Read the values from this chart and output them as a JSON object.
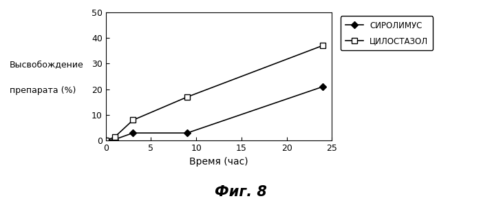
{
  "sirolimus_x": [
    0,
    1,
    3,
    9,
    24
  ],
  "sirolimus_y": [
    0,
    0.5,
    3,
    3,
    21
  ],
  "cilostazol_x": [
    0,
    1,
    3,
    9,
    24
  ],
  "cilostazol_y": [
    0,
    1.5,
    8,
    17,
    37
  ],
  "xlabel": "Время (час)",
  "ylabel_line1": "Высвобождение",
  "ylabel_line2": "препарата (%)",
  "legend_sirolimus": "СИРОЛИМУС",
  "legend_cilostazol": "ЦИЛОСТАЗОЛ",
  "xlim": [
    0,
    25
  ],
  "ylim": [
    0,
    50
  ],
  "xticks": [
    0,
    5,
    10,
    15,
    20,
    25
  ],
  "yticks": [
    0,
    10,
    20,
    30,
    40,
    50
  ],
  "fig_label": "Фиг. 8",
  "background_color": "#ffffff",
  "line_color": "#000000"
}
